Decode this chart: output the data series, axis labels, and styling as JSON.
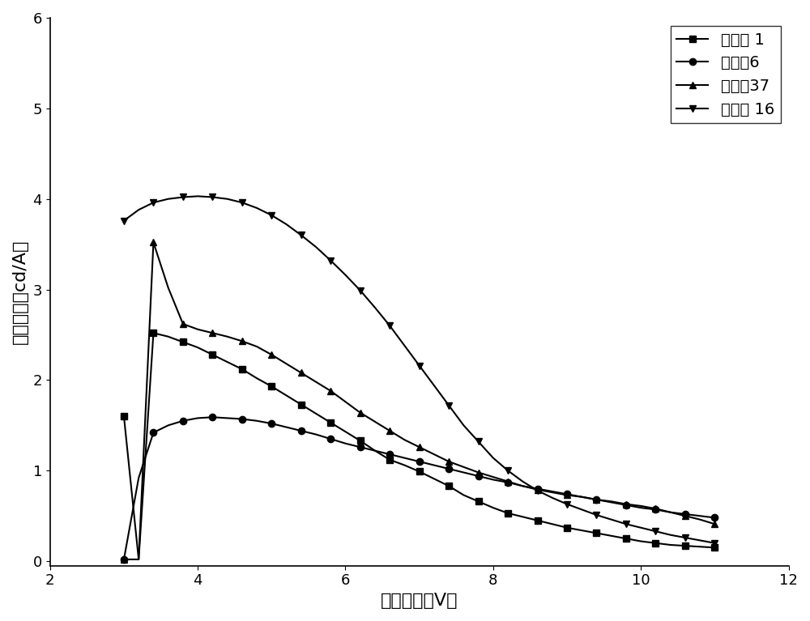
{
  "xlabel": "驱动电压（V）",
  "ylabel": "电流效率（cd/A）",
  "xlim": [
    2,
    12
  ],
  "ylim": [
    -0.05,
    6
  ],
  "xticks": [
    2,
    4,
    6,
    8,
    10,
    12
  ],
  "yticks": [
    0,
    1,
    2,
    3,
    4,
    5,
    6
  ],
  "series": [
    {
      "label": "化合物 1",
      "marker": "s",
      "color": "#000000",
      "x": [
        3.0,
        3.2,
        3.4,
        3.6,
        3.8,
        4.0,
        4.2,
        4.4,
        4.6,
        4.8,
        5.0,
        5.2,
        5.4,
        5.6,
        5.8,
        6.0,
        6.2,
        6.4,
        6.6,
        6.8,
        7.0,
        7.2,
        7.4,
        7.6,
        7.8,
        8.0,
        8.2,
        8.4,
        8.6,
        8.8,
        9.0,
        9.2,
        9.4,
        9.6,
        9.8,
        10.0,
        10.2,
        10.4,
        10.6,
        10.8,
        11.0
      ],
      "y": [
        1.6,
        0.02,
        2.52,
        2.48,
        2.42,
        2.36,
        2.28,
        2.2,
        2.12,
        2.02,
        1.93,
        1.83,
        1.73,
        1.63,
        1.53,
        1.43,
        1.33,
        1.22,
        1.12,
        1.06,
        0.99,
        0.91,
        0.83,
        0.73,
        0.66,
        0.59,
        0.53,
        0.49,
        0.45,
        0.41,
        0.37,
        0.34,
        0.31,
        0.28,
        0.25,
        0.22,
        0.2,
        0.18,
        0.17,
        0.16,
        0.15
      ]
    },
    {
      "label": "化合物6",
      "marker": "o",
      "color": "#000000",
      "x": [
        3.0,
        3.2,
        3.4,
        3.6,
        3.8,
        4.0,
        4.2,
        4.4,
        4.6,
        4.8,
        5.0,
        5.2,
        5.4,
        5.6,
        5.8,
        6.0,
        6.2,
        6.4,
        6.6,
        6.8,
        7.0,
        7.2,
        7.4,
        7.6,
        7.8,
        8.0,
        8.2,
        8.4,
        8.6,
        8.8,
        9.0,
        9.2,
        9.4,
        9.6,
        9.8,
        10.0,
        10.2,
        10.4,
        10.6,
        10.8,
        11.0
      ],
      "y": [
        0.02,
        0.92,
        1.42,
        1.5,
        1.55,
        1.58,
        1.59,
        1.58,
        1.57,
        1.55,
        1.52,
        1.48,
        1.44,
        1.4,
        1.35,
        1.3,
        1.26,
        1.22,
        1.18,
        1.14,
        1.1,
        1.06,
        1.02,
        0.98,
        0.94,
        0.9,
        0.87,
        0.83,
        0.8,
        0.77,
        0.74,
        0.71,
        0.68,
        0.65,
        0.62,
        0.59,
        0.57,
        0.54,
        0.52,
        0.5,
        0.48
      ]
    },
    {
      "label": "化合物37",
      "marker": "^",
      "color": "#000000",
      "x": [
        3.0,
        3.2,
        3.4,
        3.6,
        3.8,
        4.0,
        4.2,
        4.4,
        4.6,
        4.8,
        5.0,
        5.2,
        5.4,
        5.6,
        5.8,
        6.0,
        6.2,
        6.4,
        6.6,
        6.8,
        7.0,
        7.2,
        7.4,
        7.6,
        7.8,
        8.0,
        8.2,
        8.4,
        8.6,
        8.8,
        9.0,
        9.2,
        9.4,
        9.6,
        9.8,
        10.0,
        10.2,
        10.4,
        10.6,
        10.8,
        11.0
      ],
      "y": [
        0.02,
        0.02,
        3.52,
        3.02,
        2.62,
        2.56,
        2.52,
        2.48,
        2.43,
        2.37,
        2.28,
        2.18,
        2.08,
        1.98,
        1.88,
        1.76,
        1.64,
        1.54,
        1.44,
        1.34,
        1.26,
        1.18,
        1.1,
        1.04,
        0.98,
        0.93,
        0.88,
        0.83,
        0.79,
        0.76,
        0.73,
        0.71,
        0.68,
        0.66,
        0.63,
        0.61,
        0.58,
        0.54,
        0.5,
        0.46,
        0.41
      ]
    },
    {
      "label": "化合物 16",
      "marker": "v",
      "color": "#000000",
      "x": [
        3.0,
        3.2,
        3.4,
        3.6,
        3.8,
        4.0,
        4.2,
        4.4,
        4.6,
        4.8,
        5.0,
        5.2,
        5.4,
        5.6,
        5.8,
        6.0,
        6.2,
        6.4,
        6.6,
        6.8,
        7.0,
        7.2,
        7.4,
        7.6,
        7.8,
        8.0,
        8.2,
        8.4,
        8.6,
        8.8,
        9.0,
        9.2,
        9.4,
        9.6,
        9.8,
        10.0,
        10.2,
        10.4,
        10.6,
        10.8,
        11.0
      ],
      "y": [
        3.76,
        3.88,
        3.96,
        4.0,
        4.02,
        4.03,
        4.02,
        4.0,
        3.96,
        3.9,
        3.82,
        3.72,
        3.6,
        3.47,
        3.32,
        3.16,
        2.99,
        2.8,
        2.6,
        2.38,
        2.16,
        1.94,
        1.72,
        1.5,
        1.32,
        1.14,
        1.0,
        0.88,
        0.78,
        0.7,
        0.63,
        0.57,
        0.51,
        0.46,
        0.41,
        0.37,
        0.33,
        0.29,
        0.26,
        0.23,
        0.2
      ]
    }
  ],
  "legend_loc": "upper right",
  "background_color": "#ffffff",
  "markersize": 6,
  "linewidth": 1.5,
  "markevery": 2
}
